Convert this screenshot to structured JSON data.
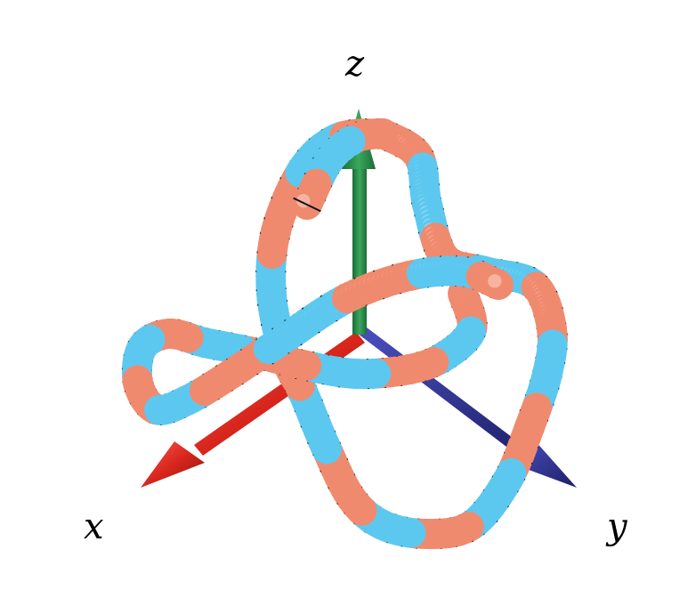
{
  "figure": {
    "axes": {
      "x": {
        "label": "x",
        "color": "#e8302a"
      },
      "y": {
        "label": "y",
        "color": "#2a2f9a"
      },
      "z": {
        "label": "z",
        "color": "#2e8b4a"
      }
    },
    "tube": {
      "colors": {
        "coral": "#f08a6e",
        "sky": "#5cc8f0",
        "highlight": "#ffffff",
        "shade": "#c46a5a",
        "bands": "#111111"
      }
    }
  }
}
